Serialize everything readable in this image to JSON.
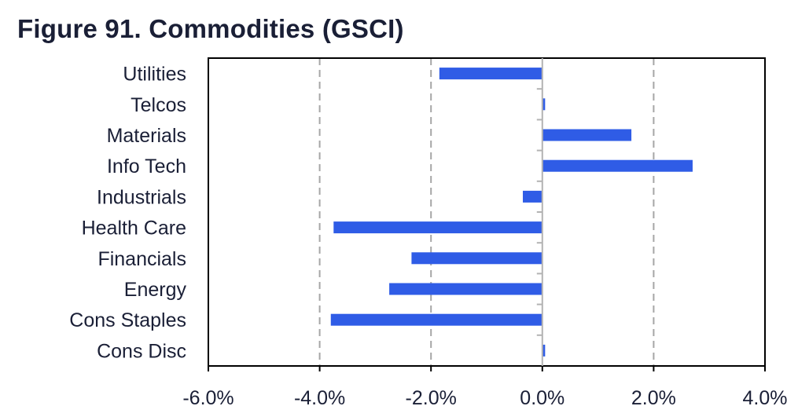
{
  "title": "Figure 91. Commodities (GSCI)",
  "chart_data": {
    "type": "bar",
    "orientation": "horizontal",
    "title": "Figure 91. Commodities (GSCI)",
    "xlabel": "",
    "ylabel": "",
    "categories": [
      "Utilities",
      "Telcos",
      "Materials",
      "Info Tech",
      "Industrials",
      "Health Care",
      "Financials",
      "Energy",
      "Cons Staples",
      "Cons Disc"
    ],
    "values": [
      -1.85,
      0.05,
      1.6,
      2.7,
      -0.35,
      -3.75,
      -2.35,
      -2.75,
      -3.8,
      0.05
    ],
    "xlim": [
      -6.0,
      4.0
    ],
    "xticks": [
      -6.0,
      -4.0,
      -2.0,
      0.0,
      2.0,
      4.0
    ],
    "xtick_labels": [
      "-6.0%",
      "-4.0%",
      "-2.0%",
      "0.0%",
      "2.0%",
      "4.0%"
    ],
    "value_unit": "%",
    "grid": "vertical dashed",
    "legend": "none",
    "bar_color": "#2f5ce6"
  }
}
